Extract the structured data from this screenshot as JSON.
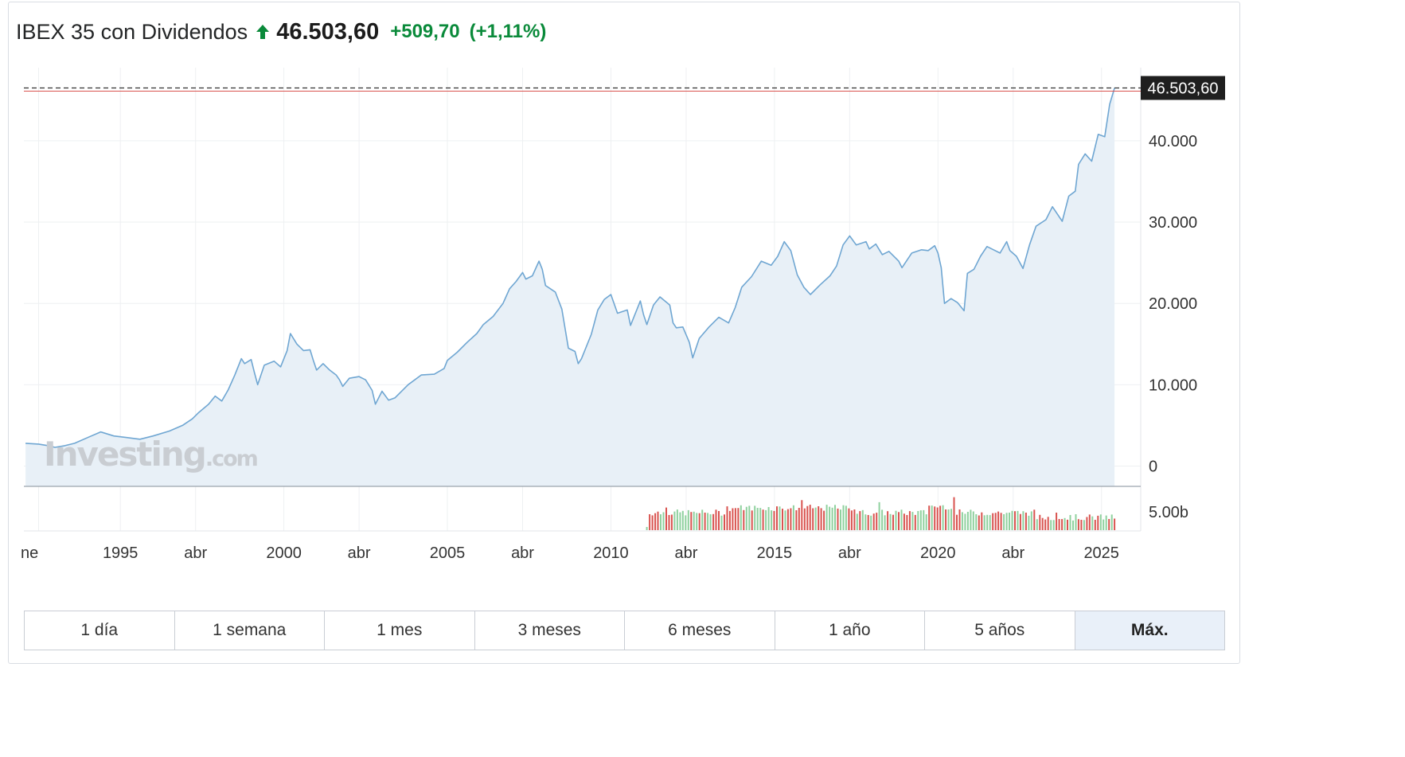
{
  "header": {
    "name": "IBEX 35 con Dividendos",
    "price": "46.503,60",
    "change": "+509,70",
    "change_pct": "(+1,11%)",
    "direction_icon": "arrow-up-icon"
  },
  "colors": {
    "up": "#0a8a3a",
    "line": "#6fa6d2",
    "area": "#e8f0f7",
    "last_price_bg": "#1f1f1f",
    "volume_up": "#8fd19e",
    "volume_down": "#d9534f",
    "active_range_bg": "#e9f0f9"
  },
  "watermark": {
    "brand": "Investing",
    "suffix": ".com"
  },
  "range_buttons": [
    {
      "label": "1 día"
    },
    {
      "label": "1 semana"
    },
    {
      "label": "1 mes"
    },
    {
      "label": "3 meses"
    },
    {
      "label": "6 meses"
    },
    {
      "label": "1 año"
    },
    {
      "label": "5 años"
    },
    {
      "label": "Máx.",
      "active": true
    }
  ],
  "chart_data": {
    "type": "area",
    "last_value": 46503.6,
    "last_value_label": "46.503,60",
    "ylim": [
      -2500,
      49000
    ],
    "y_ticks": [
      {
        "value": 0,
        "label": "0"
      },
      {
        "value": 10000,
        "label": "10.000"
      },
      {
        "value": 20000,
        "label": "20.000"
      },
      {
        "value": 30000,
        "label": "30.000"
      },
      {
        "value": 40000,
        "label": "40.000"
      }
    ],
    "volume_tick": {
      "value": 5000000000,
      "label": "5.00b"
    },
    "x_ticks": [
      {
        "t": 1992.5,
        "label": "ne"
      },
      {
        "t": 1995.0,
        "label": "1995"
      },
      {
        "t": 1997.3,
        "label": "abr"
      },
      {
        "t": 2000.0,
        "label": "2000"
      },
      {
        "t": 2002.3,
        "label": "abr"
      },
      {
        "t": 2005.0,
        "label": "2005"
      },
      {
        "t": 2007.3,
        "label": "abr"
      },
      {
        "t": 2010.0,
        "label": "2010"
      },
      {
        "t": 2012.3,
        "label": "abr"
      },
      {
        "t": 2015.0,
        "label": "2015"
      },
      {
        "t": 2017.3,
        "label": "abr"
      },
      {
        "t": 2020.0,
        "label": "2020"
      },
      {
        "t": 2022.3,
        "label": "abr"
      },
      {
        "t": 2025.0,
        "label": "2025"
      }
    ],
    "xlim": [
      1992.05,
      2026.2
    ],
    "series": [
      {
        "points": [
          [
            1992.1,
            2800
          ],
          [
            1992.5,
            2700
          ],
          [
            1992.8,
            2500
          ],
          [
            1993.0,
            2300
          ],
          [
            1993.3,
            2500
          ],
          [
            1993.6,
            2800
          ],
          [
            1994.0,
            3500
          ],
          [
            1994.4,
            4200
          ],
          [
            1994.8,
            3700
          ],
          [
            1995.2,
            3500
          ],
          [
            1995.6,
            3300
          ],
          [
            1996.0,
            3700
          ],
          [
            1996.5,
            4300
          ],
          [
            1996.9,
            5000
          ],
          [
            1997.2,
            5800
          ],
          [
            1997.4,
            6600
          ],
          [
            1997.7,
            7600
          ],
          [
            1997.9,
            8600
          ],
          [
            1998.1,
            8000
          ],
          [
            1998.3,
            9400
          ],
          [
            1998.5,
            11200
          ],
          [
            1998.7,
            13200
          ],
          [
            1998.8,
            12600
          ],
          [
            1999.0,
            13100
          ],
          [
            1999.1,
            11500
          ],
          [
            1999.2,
            10000
          ],
          [
            1999.4,
            12400
          ],
          [
            1999.7,
            12900
          ],
          [
            1999.9,
            12200
          ],
          [
            2000.1,
            14200
          ],
          [
            2000.2,
            16300
          ],
          [
            2000.4,
            15000
          ],
          [
            2000.6,
            14200
          ],
          [
            2000.8,
            14300
          ],
          [
            2000.9,
            13000
          ],
          [
            2001.0,
            11800
          ],
          [
            2001.2,
            12600
          ],
          [
            2001.4,
            11800
          ],
          [
            2001.6,
            11200
          ],
          [
            2001.7,
            10600
          ],
          [
            2001.8,
            9800
          ],
          [
            2002.0,
            10800
          ],
          [
            2002.3,
            11000
          ],
          [
            2002.5,
            10600
          ],
          [
            2002.7,
            9300
          ],
          [
            2002.8,
            7600
          ],
          [
            2003.0,
            9200
          ],
          [
            2003.2,
            8100
          ],
          [
            2003.4,
            8400
          ],
          [
            2003.8,
            10000
          ],
          [
            2004.2,
            11200
          ],
          [
            2004.6,
            11300
          ],
          [
            2004.9,
            12000
          ],
          [
            2005.0,
            13000
          ],
          [
            2005.3,
            14000
          ],
          [
            2005.6,
            15200
          ],
          [
            2005.9,
            16300
          ],
          [
            2006.1,
            17400
          ],
          [
            2006.4,
            18400
          ],
          [
            2006.7,
            20000
          ],
          [
            2006.9,
            21800
          ],
          [
            2007.1,
            22700
          ],
          [
            2007.3,
            23800
          ],
          [
            2007.4,
            23000
          ],
          [
            2007.6,
            23400
          ],
          [
            2007.8,
            25200
          ],
          [
            2007.9,
            24200
          ],
          [
            2008.0,
            22200
          ],
          [
            2008.3,
            21400
          ],
          [
            2008.5,
            19300
          ],
          [
            2008.7,
            14500
          ],
          [
            2008.9,
            14100
          ],
          [
            2009.0,
            12600
          ],
          [
            2009.1,
            13200
          ],
          [
            2009.4,
            16200
          ],
          [
            2009.6,
            19200
          ],
          [
            2009.8,
            20500
          ],
          [
            2010.0,
            21100
          ],
          [
            2010.2,
            18800
          ],
          [
            2010.5,
            19200
          ],
          [
            2010.6,
            17300
          ],
          [
            2010.9,
            20300
          ],
          [
            2011.0,
            18600
          ],
          [
            2011.1,
            17400
          ],
          [
            2011.3,
            19800
          ],
          [
            2011.5,
            20800
          ],
          [
            2011.8,
            19800
          ],
          [
            2011.9,
            17600
          ],
          [
            2012.0,
            17000
          ],
          [
            2012.2,
            17100
          ],
          [
            2012.4,
            15200
          ],
          [
            2012.5,
            13300
          ],
          [
            2012.7,
            15700
          ],
          [
            2013.0,
            17100
          ],
          [
            2013.3,
            18300
          ],
          [
            2013.6,
            17600
          ],
          [
            2013.8,
            19500
          ],
          [
            2014.0,
            22000
          ],
          [
            2014.3,
            23300
          ],
          [
            2014.6,
            25200
          ],
          [
            2014.9,
            24700
          ],
          [
            2015.1,
            25800
          ],
          [
            2015.3,
            27600
          ],
          [
            2015.5,
            26500
          ],
          [
            2015.7,
            23500
          ],
          [
            2015.9,
            22000
          ],
          [
            2016.1,
            21100
          ],
          [
            2016.4,
            22300
          ],
          [
            2016.7,
            23400
          ],
          [
            2016.9,
            24600
          ],
          [
            2017.1,
            27200
          ],
          [
            2017.3,
            28300
          ],
          [
            2017.5,
            27200
          ],
          [
            2017.8,
            27600
          ],
          [
            2017.9,
            26700
          ],
          [
            2018.1,
            27300
          ],
          [
            2018.3,
            26000
          ],
          [
            2018.5,
            26400
          ],
          [
            2018.8,
            25200
          ],
          [
            2018.9,
            24400
          ],
          [
            2019.2,
            26200
          ],
          [
            2019.5,
            26600
          ],
          [
            2019.7,
            26500
          ],
          [
            2019.9,
            27100
          ],
          [
            2020.0,
            26200
          ],
          [
            2020.1,
            24400
          ],
          [
            2020.2,
            20000
          ],
          [
            2020.4,
            20600
          ],
          [
            2020.6,
            20100
          ],
          [
            2020.8,
            19100
          ],
          [
            2020.9,
            23700
          ],
          [
            2021.1,
            24200
          ],
          [
            2021.3,
            25800
          ],
          [
            2021.5,
            27000
          ],
          [
            2021.7,
            26600
          ],
          [
            2021.9,
            26200
          ],
          [
            2022.1,
            27600
          ],
          [
            2022.2,
            26500
          ],
          [
            2022.4,
            25800
          ],
          [
            2022.6,
            24300
          ],
          [
            2022.8,
            27200
          ],
          [
            2023.0,
            29500
          ],
          [
            2023.3,
            30300
          ],
          [
            2023.5,
            31900
          ],
          [
            2023.8,
            30100
          ],
          [
            2024.0,
            33200
          ],
          [
            2024.2,
            33800
          ],
          [
            2024.3,
            37100
          ],
          [
            2024.5,
            38400
          ],
          [
            2024.7,
            37500
          ],
          [
            2024.9,
            40800
          ],
          [
            2025.1,
            40500
          ],
          [
            2025.25,
            44500
          ],
          [
            2025.4,
            46503.6
          ]
        ]
      }
    ]
  }
}
